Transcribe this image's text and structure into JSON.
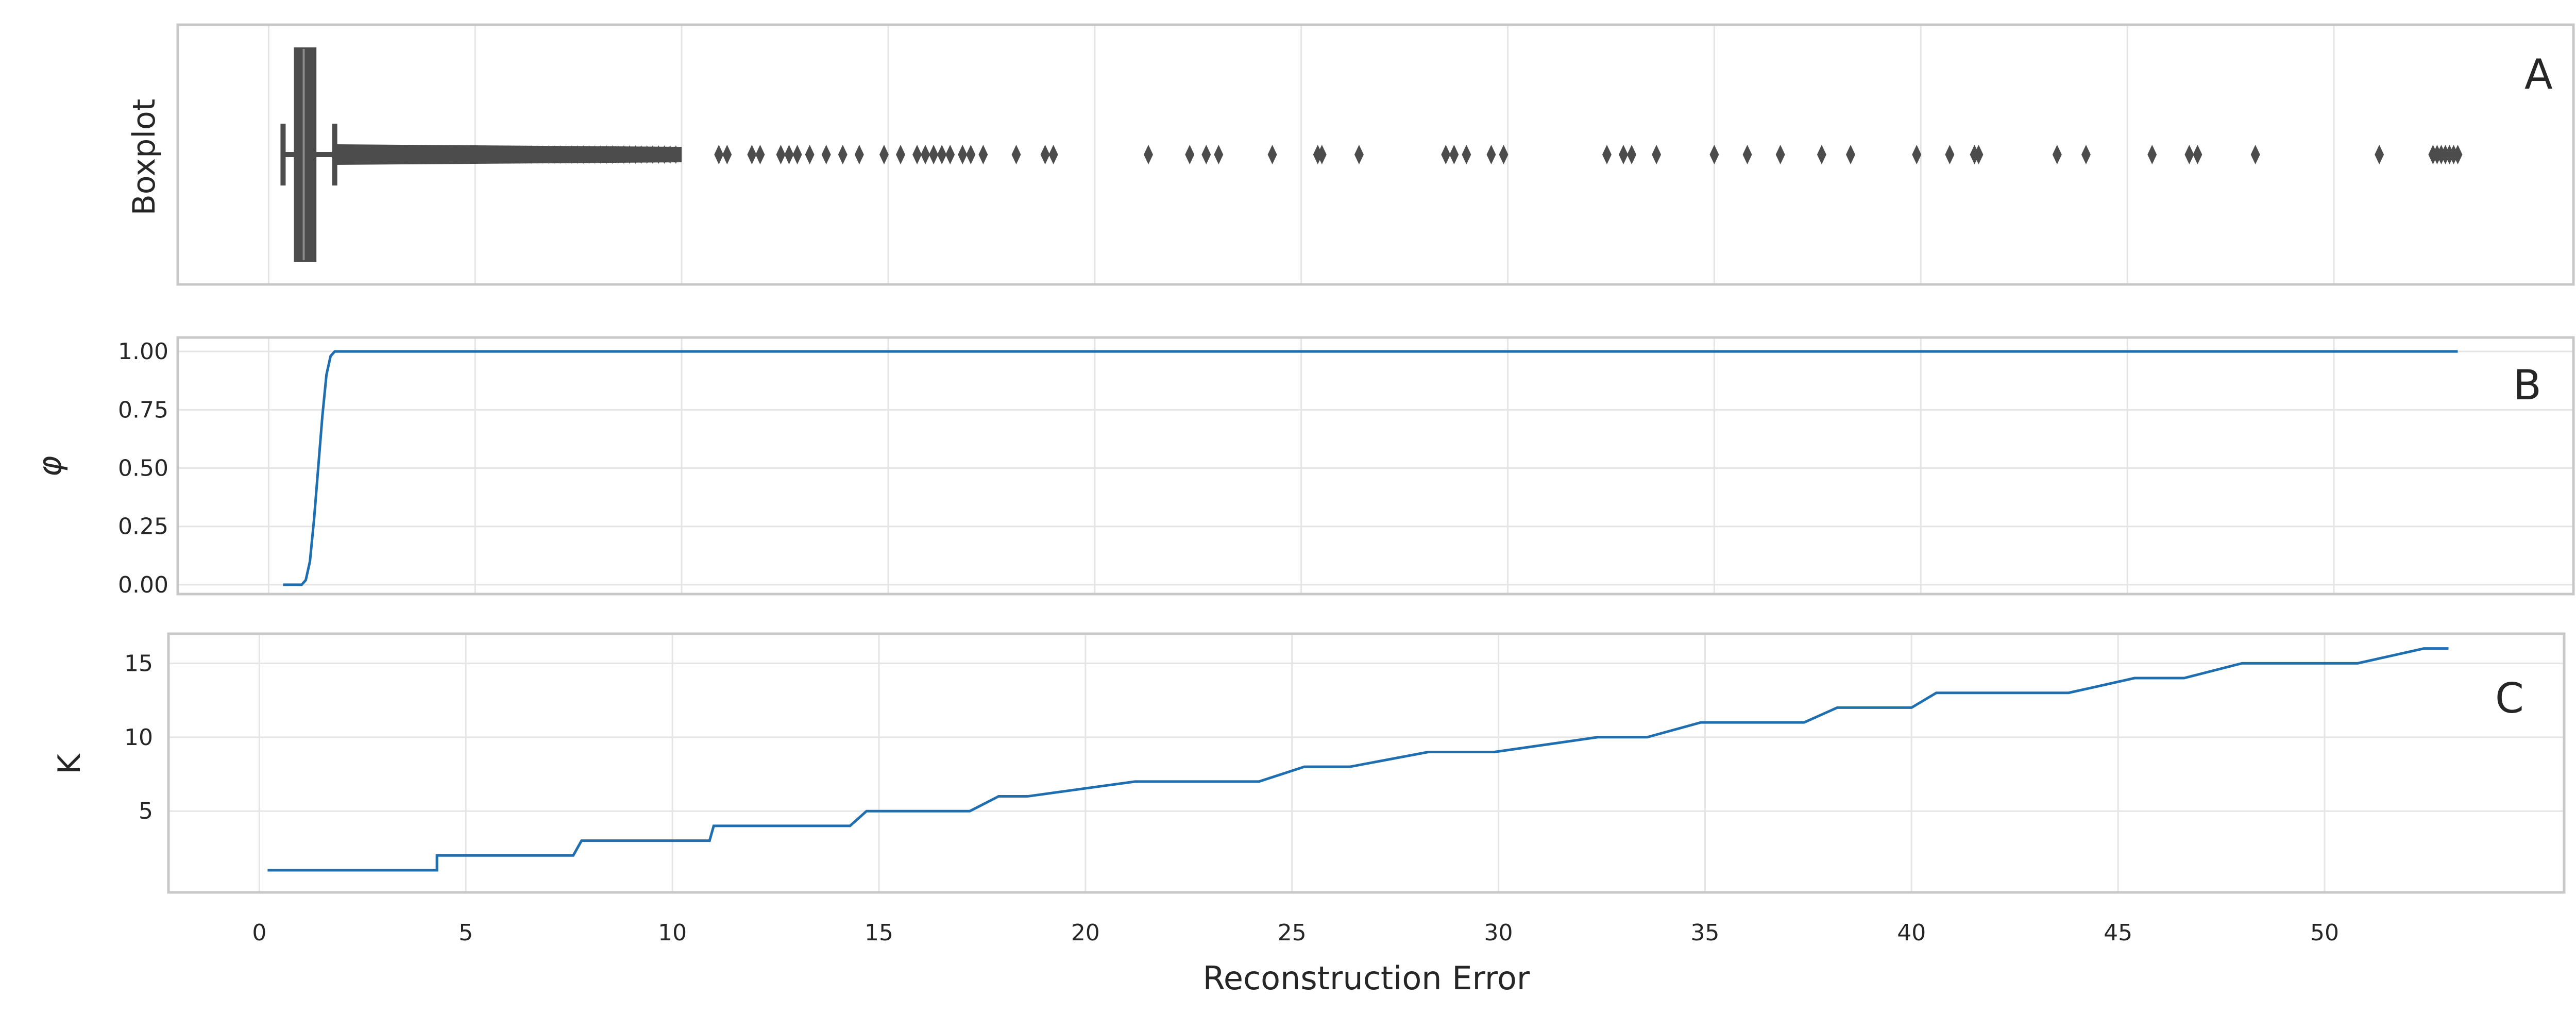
{
  "chart_data": [
    {
      "panel_letter": "A",
      "type": "boxplot",
      "ylabel": "Boxplot",
      "xlim": [
        -2.2,
        55.8
      ],
      "box": {
        "whisker_low": 0.35,
        "q1": 0.65,
        "median": 0.85,
        "q3": 1.12,
        "whisker_high": 1.6
      },
      "dense_outlier_range": [
        1.6,
        10.0
      ],
      "outliers": [
        10.9,
        11.1,
        11.7,
        11.9,
        12.4,
        12.6,
        12.8,
        13.1,
        13.5,
        13.9,
        14.3,
        14.9,
        15.3,
        15.7,
        15.9,
        16.1,
        16.3,
        16.5,
        16.8,
        17.0,
        17.3,
        18.1,
        18.8,
        19.0,
        21.3,
        22.3,
        22.7,
        23.0,
        24.3,
        25.4,
        25.5,
        26.4,
        28.5,
        28.7,
        29.0,
        29.6,
        29.9,
        32.4,
        32.8,
        33.0,
        33.6,
        35.0,
        35.8,
        36.6,
        37.6,
        38.3,
        39.9,
        40.7,
        41.3,
        41.4,
        43.3,
        44.0,
        45.6,
        46.5,
        46.7,
        48.1,
        51.1,
        52.4,
        52.5,
        52.6,
        52.7,
        52.8,
        52.9,
        53.0
      ]
    },
    {
      "panel_letter": "B",
      "type": "line",
      "ylabel": "φ",
      "xlim": [
        -2.2,
        55.8
      ],
      "ylim": [
        -0.04,
        1.06
      ],
      "yticks": [
        "0.00",
        "0.25",
        "0.50",
        "0.75",
        "1.00"
      ],
      "series": [
        {
          "x": [
            0.35,
            0.8,
            0.9,
            1.0,
            1.1,
            1.2,
            1.3,
            1.4,
            1.5,
            1.6,
            1.7,
            53.0
          ],
          "y": [
            0.0,
            0.0,
            0.02,
            0.1,
            0.28,
            0.5,
            0.72,
            0.9,
            0.98,
            1.0,
            1.0,
            1.0
          ]
        }
      ]
    },
    {
      "panel_letter": "C",
      "type": "line",
      "ylabel": "K",
      "xlabel": "Reconstruction Error",
      "xlim": [
        -2.2,
        55.8
      ],
      "ylim": [
        -0.5,
        17.0
      ],
      "yticks": [
        "5",
        "10",
        "15"
      ],
      "xticks": [
        "0",
        "5",
        "10",
        "15",
        "20",
        "25",
        "30",
        "35",
        "40",
        "45",
        "50"
      ],
      "series": [
        {
          "x": [
            0.2,
            4.3,
            4.3,
            7.6,
            7.8,
            10.9,
            11.0,
            14.3,
            14.7,
            17.2,
            17.9,
            18.6,
            21.2,
            24.2,
            25.3,
            26.4,
            28.3,
            29.9,
            32.4,
            33.6,
            34.9,
            37.4,
            38.2,
            40.0,
            40.6,
            43.8,
            45.4,
            46.6,
            48.0,
            50.8,
            52.4,
            53.0
          ],
          "y": [
            1,
            1,
            2,
            2,
            3,
            3,
            4,
            4,
            5,
            5,
            6,
            6,
            7,
            7,
            8,
            8,
            9,
            9,
            10,
            10,
            11,
            11,
            12,
            12,
            13,
            13,
            14,
            14,
            15,
            15,
            16,
            16
          ]
        }
      ]
    }
  ],
  "colors": {
    "box": "#4c4c4c",
    "line": "#1f6fb0",
    "grid": "#e5e5e5",
    "frame": "#c8c8c8",
    "text": "#262626"
  }
}
